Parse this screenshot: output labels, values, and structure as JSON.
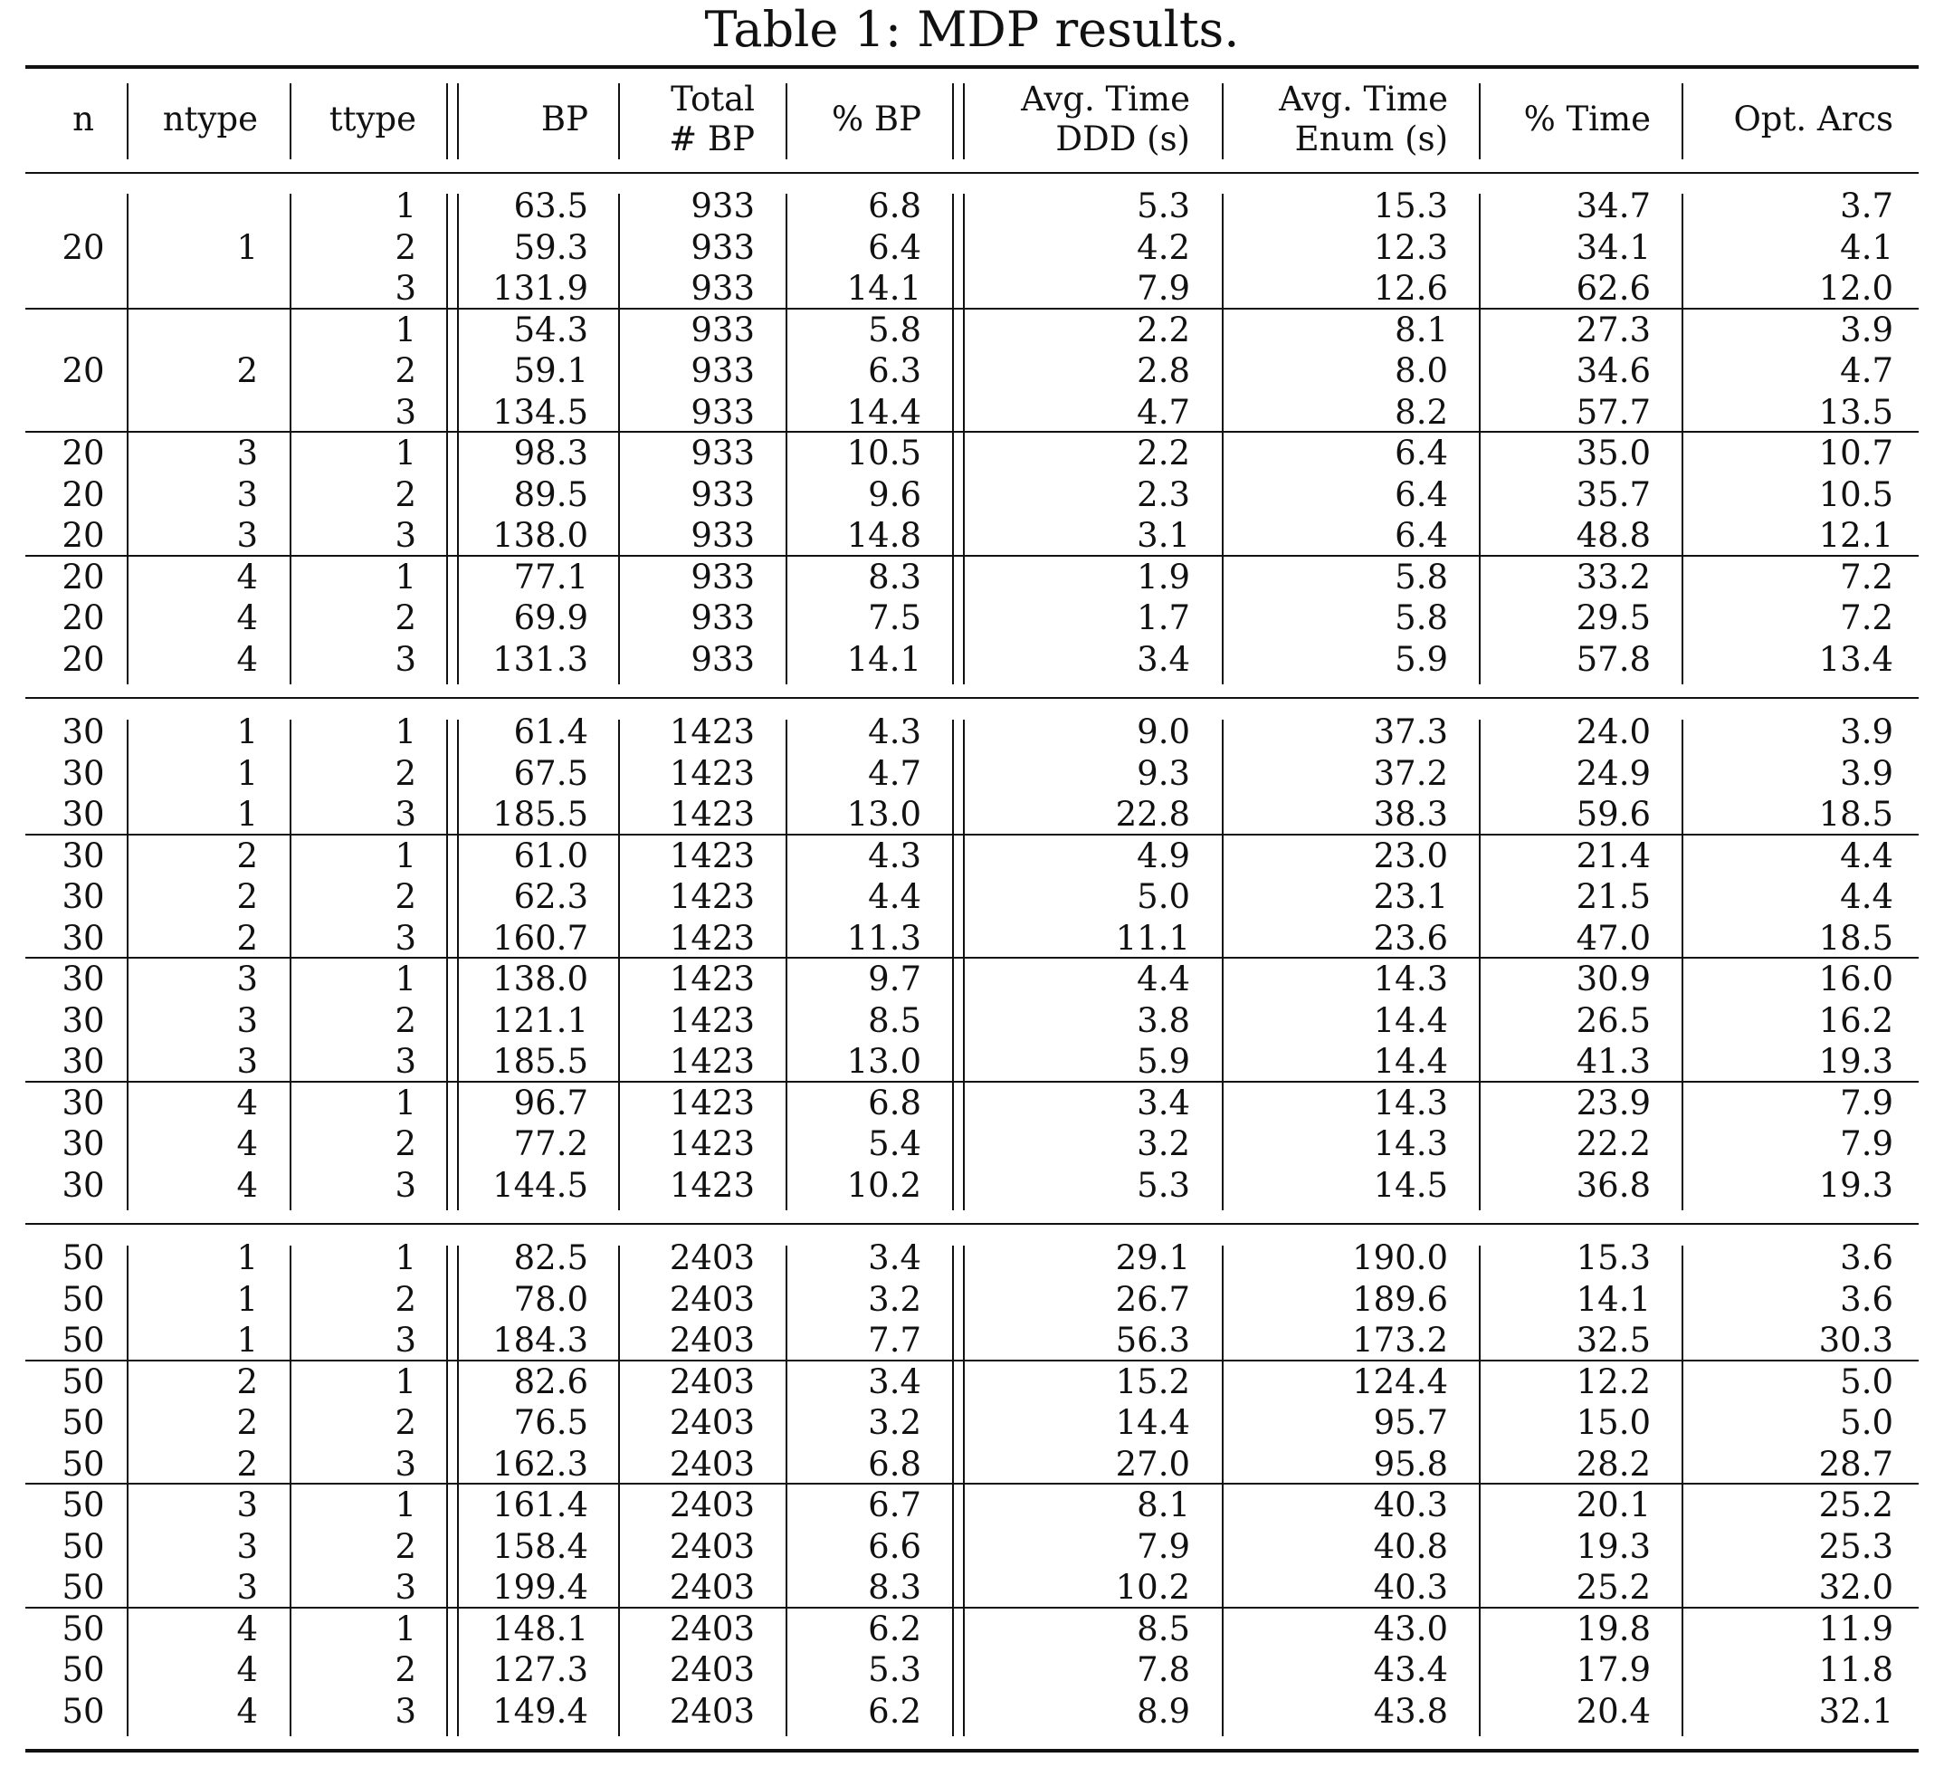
{
  "caption": "Table 1: MDP results.",
  "columns": [
    "n",
    "ntype",
    "ttype",
    "BP",
    "Total\n# BP",
    "% BP",
    "Avg. Time\nDDD (s)",
    "Avg. Time\nEnum (s)",
    "% Time",
    "Opt. Arcs"
  ],
  "groups": [
    {
      "rows": [
        {
          "n": "",
          "ntype": "",
          "ttype": "1",
          "bp": "63.5",
          "total_bp": "933",
          "pct_bp": "6.8",
          "time_ddd": "5.3",
          "time_enum": "15.3",
          "pct_time": "34.7",
          "opt_arcs": "3.7"
        },
        {
          "n": "20",
          "ntype": "1",
          "ttype": "2",
          "bp": "59.3",
          "total_bp": "933",
          "pct_bp": "6.4",
          "time_ddd": "4.2",
          "time_enum": "12.3",
          "pct_time": "34.1",
          "opt_arcs": "4.1"
        },
        {
          "n": "",
          "ntype": "",
          "ttype": "3",
          "bp": "131.9",
          "total_bp": "933",
          "pct_bp": "14.1",
          "time_ddd": "7.9",
          "time_enum": "12.6",
          "pct_time": "62.6",
          "opt_arcs": "12.0"
        }
      ]
    },
    {
      "rows": [
        {
          "n": "",
          "ntype": "",
          "ttype": "1",
          "bp": "54.3",
          "total_bp": "933",
          "pct_bp": "5.8",
          "time_ddd": "2.2",
          "time_enum": "8.1",
          "pct_time": "27.3",
          "opt_arcs": "3.9"
        },
        {
          "n": "20",
          "ntype": "2",
          "ttype": "2",
          "bp": "59.1",
          "total_bp": "933",
          "pct_bp": "6.3",
          "time_ddd": "2.8",
          "time_enum": "8.0",
          "pct_time": "34.6",
          "opt_arcs": "4.7"
        },
        {
          "n": "",
          "ntype": "",
          "ttype": "3",
          "bp": "134.5",
          "total_bp": "933",
          "pct_bp": "14.4",
          "time_ddd": "4.7",
          "time_enum": "8.2",
          "pct_time": "57.7",
          "opt_arcs": "13.5"
        }
      ]
    },
    {
      "rows": [
        {
          "n": "20",
          "ntype": "3",
          "ttype": "1",
          "bp": "98.3",
          "total_bp": "933",
          "pct_bp": "10.5",
          "time_ddd": "2.2",
          "time_enum": "6.4",
          "pct_time": "35.0",
          "opt_arcs": "10.7"
        },
        {
          "n": "20",
          "ntype": "3",
          "ttype": "2",
          "bp": "89.5",
          "total_bp": "933",
          "pct_bp": "9.6",
          "time_ddd": "2.3",
          "time_enum": "6.4",
          "pct_time": "35.7",
          "opt_arcs": "10.5"
        },
        {
          "n": "20",
          "ntype": "3",
          "ttype": "3",
          "bp": "138.0",
          "total_bp": "933",
          "pct_bp": "14.8",
          "time_ddd": "3.1",
          "time_enum": "6.4",
          "pct_time": "48.8",
          "opt_arcs": "12.1"
        }
      ]
    },
    {
      "rows": [
        {
          "n": "20",
          "ntype": "4",
          "ttype": "1",
          "bp": "77.1",
          "total_bp": "933",
          "pct_bp": "8.3",
          "time_ddd": "1.9",
          "time_enum": "5.8",
          "pct_time": "33.2",
          "opt_arcs": "7.2"
        },
        {
          "n": "20",
          "ntype": "4",
          "ttype": "2",
          "bp": "69.9",
          "total_bp": "933",
          "pct_bp": "7.5",
          "time_ddd": "1.7",
          "time_enum": "5.8",
          "pct_time": "29.5",
          "opt_arcs": "7.2"
        },
        {
          "n": "20",
          "ntype": "4",
          "ttype": "3",
          "bp": "131.3",
          "total_bp": "933",
          "pct_bp": "14.1",
          "time_ddd": "3.4",
          "time_enum": "5.9",
          "pct_time": "57.8",
          "opt_arcs": "13.4"
        }
      ]
    },
    {
      "rows": [
        {
          "n": "30",
          "ntype": "1",
          "ttype": "1",
          "bp": "61.4",
          "total_bp": "1423",
          "pct_bp": "4.3",
          "time_ddd": "9.0",
          "time_enum": "37.3",
          "pct_time": "24.0",
          "opt_arcs": "3.9"
        },
        {
          "n": "30",
          "ntype": "1",
          "ttype": "2",
          "bp": "67.5",
          "total_bp": "1423",
          "pct_bp": "4.7",
          "time_ddd": "9.3",
          "time_enum": "37.2",
          "pct_time": "24.9",
          "opt_arcs": "3.9"
        },
        {
          "n": "30",
          "ntype": "1",
          "ttype": "3",
          "bp": "185.5",
          "total_bp": "1423",
          "pct_bp": "13.0",
          "time_ddd": "22.8",
          "time_enum": "38.3",
          "pct_time": "59.6",
          "opt_arcs": "18.5"
        }
      ]
    },
    {
      "rows": [
        {
          "n": "30",
          "ntype": "2",
          "ttype": "1",
          "bp": "61.0",
          "total_bp": "1423",
          "pct_bp": "4.3",
          "time_ddd": "4.9",
          "time_enum": "23.0",
          "pct_time": "21.4",
          "opt_arcs": "4.4"
        },
        {
          "n": "30",
          "ntype": "2",
          "ttype": "2",
          "bp": "62.3",
          "total_bp": "1423",
          "pct_bp": "4.4",
          "time_ddd": "5.0",
          "time_enum": "23.1",
          "pct_time": "21.5",
          "opt_arcs": "4.4"
        },
        {
          "n": "30",
          "ntype": "2",
          "ttype": "3",
          "bp": "160.7",
          "total_bp": "1423",
          "pct_bp": "11.3",
          "time_ddd": "11.1",
          "time_enum": "23.6",
          "pct_time": "47.0",
          "opt_arcs": "18.5"
        }
      ]
    },
    {
      "rows": [
        {
          "n": "30",
          "ntype": "3",
          "ttype": "1",
          "bp": "138.0",
          "total_bp": "1423",
          "pct_bp": "9.7",
          "time_ddd": "4.4",
          "time_enum": "14.3",
          "pct_time": "30.9",
          "opt_arcs": "16.0"
        },
        {
          "n": "30",
          "ntype": "3",
          "ttype": "2",
          "bp": "121.1",
          "total_bp": "1423",
          "pct_bp": "8.5",
          "time_ddd": "3.8",
          "time_enum": "14.4",
          "pct_time": "26.5",
          "opt_arcs": "16.2"
        },
        {
          "n": "30",
          "ntype": "3",
          "ttype": "3",
          "bp": "185.5",
          "total_bp": "1423",
          "pct_bp": "13.0",
          "time_ddd": "5.9",
          "time_enum": "14.4",
          "pct_time": "41.3",
          "opt_arcs": "19.3"
        }
      ]
    },
    {
      "rows": [
        {
          "n": "30",
          "ntype": "4",
          "ttype": "1",
          "bp": "96.7",
          "total_bp": "1423",
          "pct_bp": "6.8",
          "time_ddd": "3.4",
          "time_enum": "14.3",
          "pct_time": "23.9",
          "opt_arcs": "7.9"
        },
        {
          "n": "30",
          "ntype": "4",
          "ttype": "2",
          "bp": "77.2",
          "total_bp": "1423",
          "pct_bp": "5.4",
          "time_ddd": "3.2",
          "time_enum": "14.3",
          "pct_time": "22.2",
          "opt_arcs": "7.9"
        },
        {
          "n": "30",
          "ntype": "4",
          "ttype": "3",
          "bp": "144.5",
          "total_bp": "1423",
          "pct_bp": "10.2",
          "time_ddd": "5.3",
          "time_enum": "14.5",
          "pct_time": "36.8",
          "opt_arcs": "19.3"
        }
      ]
    },
    {
      "rows": [
        {
          "n": "50",
          "ntype": "1",
          "ttype": "1",
          "bp": "82.5",
          "total_bp": "2403",
          "pct_bp": "3.4",
          "time_ddd": "29.1",
          "time_enum": "190.0",
          "pct_time": "15.3",
          "opt_arcs": "3.6"
        },
        {
          "n": "50",
          "ntype": "1",
          "ttype": "2",
          "bp": "78.0",
          "total_bp": "2403",
          "pct_bp": "3.2",
          "time_ddd": "26.7",
          "time_enum": "189.6",
          "pct_time": "14.1",
          "opt_arcs": "3.6"
        },
        {
          "n": "50",
          "ntype": "1",
          "ttype": "3",
          "bp": "184.3",
          "total_bp": "2403",
          "pct_bp": "7.7",
          "time_ddd": "56.3",
          "time_enum": "173.2",
          "pct_time": "32.5",
          "opt_arcs": "30.3"
        }
      ]
    },
    {
      "rows": [
        {
          "n": "50",
          "ntype": "2",
          "ttype": "1",
          "bp": "82.6",
          "total_bp": "2403",
          "pct_bp": "3.4",
          "time_ddd": "15.2",
          "time_enum": "124.4",
          "pct_time": "12.2",
          "opt_arcs": "5.0"
        },
        {
          "n": "50",
          "ntype": "2",
          "ttype": "2",
          "bp": "76.5",
          "total_bp": "2403",
          "pct_bp": "3.2",
          "time_ddd": "14.4",
          "time_enum": "95.7",
          "pct_time": "15.0",
          "opt_arcs": "5.0"
        },
        {
          "n": "50",
          "ntype": "2",
          "ttype": "3",
          "bp": "162.3",
          "total_bp": "2403",
          "pct_bp": "6.8",
          "time_ddd": "27.0",
          "time_enum": "95.8",
          "pct_time": "28.2",
          "opt_arcs": "28.7"
        }
      ]
    },
    {
      "rows": [
        {
          "n": "50",
          "ntype": "3",
          "ttype": "1",
          "bp": "161.4",
          "total_bp": "2403",
          "pct_bp": "6.7",
          "time_ddd": "8.1",
          "time_enum": "40.3",
          "pct_time": "20.1",
          "opt_arcs": "25.2"
        },
        {
          "n": "50",
          "ntype": "3",
          "ttype": "2",
          "bp": "158.4",
          "total_bp": "2403",
          "pct_bp": "6.6",
          "time_ddd": "7.9",
          "time_enum": "40.8",
          "pct_time": "19.3",
          "opt_arcs": "25.3"
        },
        {
          "n": "50",
          "ntype": "3",
          "ttype": "3",
          "bp": "199.4",
          "total_bp": "2403",
          "pct_bp": "8.3",
          "time_ddd": "10.2",
          "time_enum": "40.3",
          "pct_time": "25.2",
          "opt_arcs": "32.0"
        }
      ]
    },
    {
      "rows": [
        {
          "n": "50",
          "ntype": "4",
          "ttype": "1",
          "bp": "148.1",
          "total_bp": "2403",
          "pct_bp": "6.2",
          "time_ddd": "8.5",
          "time_enum": "43.0",
          "pct_time": "19.8",
          "opt_arcs": "11.9"
        },
        {
          "n": "50",
          "ntype": "4",
          "ttype": "2",
          "bp": "127.3",
          "total_bp": "2403",
          "pct_bp": "5.3",
          "time_ddd": "7.8",
          "time_enum": "43.4",
          "pct_time": "17.9",
          "opt_arcs": "11.8"
        },
        {
          "n": "50",
          "ntype": "4",
          "ttype": "3",
          "bp": "149.4",
          "total_bp": "2403",
          "pct_bp": "6.2",
          "time_ddd": "8.9",
          "time_enum": "43.8",
          "pct_time": "20.4",
          "opt_arcs": "32.1"
        }
      ]
    }
  ]
}
